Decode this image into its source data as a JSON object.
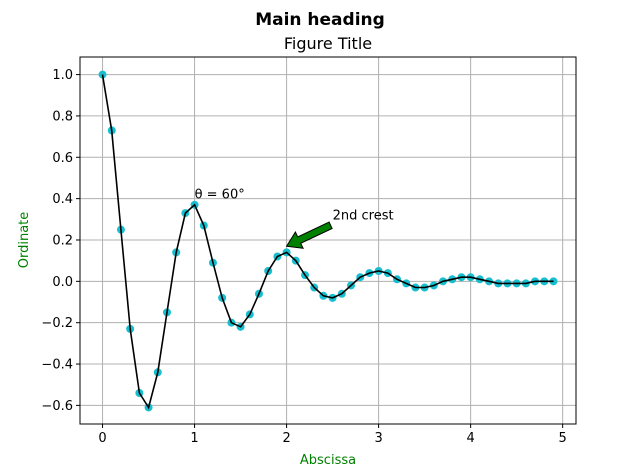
{
  "chart_data": {
    "type": "line",
    "suptitle": "Main heading",
    "title": "Figure Title",
    "xlabel": "Abscissa",
    "ylabel": "Ordinate",
    "xlim": [
      -0.245,
      5.145
    ],
    "ylim": [
      -0.69,
      1.085
    ],
    "xticks": [
      0,
      1,
      2,
      3,
      4,
      5
    ],
    "xtick_labels": [
      "0",
      "1",
      "2",
      "3",
      "4",
      "5"
    ],
    "yticks": [
      -0.6,
      -0.4,
      -0.2,
      0.0,
      0.2,
      0.4,
      0.6,
      0.8,
      1.0
    ],
    "ytick_labels": [
      "−0.6",
      "−0.4",
      "−0.2",
      "0.0",
      "0.2",
      "0.4",
      "0.6",
      "0.8",
      "1.0"
    ],
    "grid": true,
    "series": [
      {
        "kind": "scatter+line",
        "marker_color": "#17becf",
        "line_color": "#000000",
        "x": [
          0.0,
          0.1,
          0.2,
          0.3,
          0.4,
          0.5,
          0.6,
          0.7,
          0.8,
          0.9,
          1.0,
          1.1,
          1.2,
          1.3,
          1.4,
          1.5,
          1.6,
          1.7,
          1.8,
          1.9,
          2.0,
          2.1,
          2.2,
          2.3,
          2.4,
          2.5,
          2.6,
          2.7,
          2.8,
          2.9,
          3.0,
          3.1,
          3.2,
          3.3,
          3.4,
          3.5,
          3.6,
          3.7,
          3.8,
          3.9,
          4.0,
          4.1,
          4.2,
          4.3,
          4.4,
          4.5,
          4.6,
          4.7,
          4.8,
          4.9
        ],
        "y": [
          1.0,
          0.73,
          0.25,
          -0.23,
          -0.54,
          -0.61,
          -0.44,
          -0.15,
          0.14,
          0.33,
          0.37,
          0.27,
          0.09,
          -0.08,
          -0.2,
          -0.22,
          -0.16,
          -0.06,
          0.05,
          0.12,
          0.14,
          0.1,
          0.03,
          -0.03,
          -0.07,
          -0.08,
          -0.06,
          -0.02,
          0.02,
          0.04,
          0.05,
          0.04,
          0.01,
          -0.01,
          -0.03,
          -0.03,
          -0.02,
          0.0,
          0.01,
          0.02,
          0.02,
          0.01,
          0.0,
          -0.01,
          -0.01,
          -0.01,
          -0.01,
          0.0,
          0.0,
          0.0
        ]
      }
    ],
    "annotations": [
      {
        "text": "θ = 60°",
        "x": 1.0,
        "y": 0.4
      },
      {
        "text": "2nd crest",
        "x": 2.5,
        "y": 0.3,
        "arrow_to": [
          2.0,
          0.17
        ],
        "arrow_color": "#008000"
      }
    ],
    "label_color": "#008000"
  }
}
